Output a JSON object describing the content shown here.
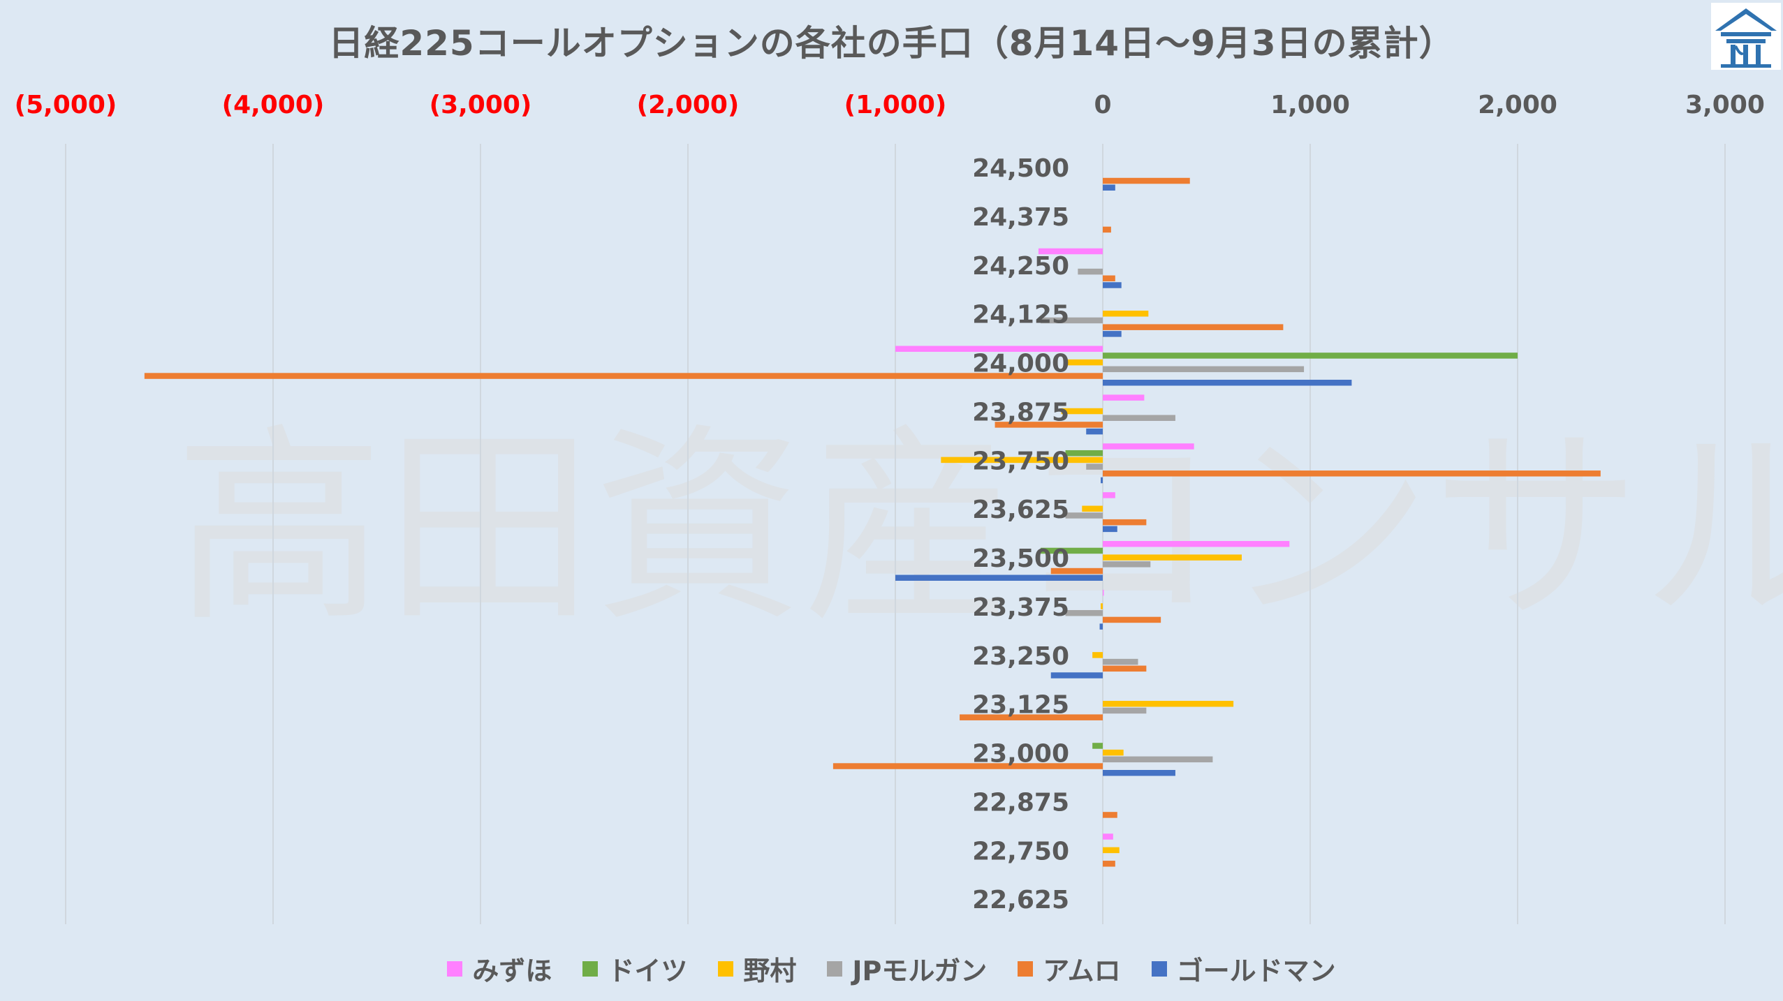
{
  "chart_data": {
    "type": "bar",
    "orientation": "horizontal",
    "title": "日経225コールオプションの各社の手口（8月14日～9月3日の累計）",
    "watermark": "高田資産コンサル",
    "xlim": [
      -5000,
      3000
    ],
    "x_ticks": [
      {
        "value": -5000,
        "label": "(5,000)"
      },
      {
        "value": -4000,
        "label": "(4,000)"
      },
      {
        "value": -3000,
        "label": "(3,000)"
      },
      {
        "value": -2000,
        "label": "(2,000)"
      },
      {
        "value": -1000,
        "label": "(1,000)"
      },
      {
        "value": 0,
        "label": "0"
      },
      {
        "value": 1000,
        "label": "1,000"
      },
      {
        "value": 2000,
        "label": "2,000"
      },
      {
        "value": 3000,
        "label": "3,000"
      }
    ],
    "x_tick_colors": {
      "negative": "#ff0000",
      "positive": "#595959"
    },
    "grid": true,
    "legend_position": "bottom",
    "categories": [
      "24,500",
      "24,375",
      "24,250",
      "24,125",
      "24,000",
      "23,875",
      "23,750",
      "23,625",
      "23,500",
      "23,375",
      "23,250",
      "23,125",
      "23,000",
      "22,875",
      "22,750",
      "22,625"
    ],
    "series": [
      {
        "name": "みずほ",
        "color": "#ff80ff",
        "values": [
          0,
          0,
          -310,
          0,
          -1000,
          200,
          440,
          60,
          900,
          5,
          0,
          0,
          0,
          0,
          50,
          0
        ]
      },
      {
        "name": "ドイツ",
        "color": "#70ad47",
        "values": [
          0,
          0,
          0,
          0,
          2000,
          0,
          -180,
          0,
          -300,
          0,
          0,
          0,
          -50,
          0,
          0,
          0
        ]
      },
      {
        "name": "野村",
        "color": "#ffc000",
        "values": [
          0,
          0,
          0,
          220,
          -180,
          -200,
          -780,
          -100,
          670,
          -10,
          -50,
          630,
          100,
          0,
          80,
          0
        ]
      },
      {
        "name": "JPモルガン",
        "color": "#a5a5a5",
        "values": [
          0,
          0,
          -120,
          -300,
          970,
          350,
          -80,
          -180,
          230,
          -180,
          170,
          210,
          530,
          0,
          0,
          0
        ]
      },
      {
        "name": "アムロ",
        "color": "#ed7d31",
        "values": [
          420,
          40,
          60,
          870,
          -4620,
          -520,
          2400,
          210,
          -250,
          280,
          210,
          -690,
          -1300,
          70,
          60,
          0
        ]
      },
      {
        "name": "ゴールドマン",
        "color": "#4472c4",
        "values": [
          60,
          0,
          90,
          90,
          1200,
          -80,
          -10,
          70,
          -1000,
          -15,
          -250,
          0,
          350,
          0,
          0,
          0
        ]
      }
    ]
  }
}
